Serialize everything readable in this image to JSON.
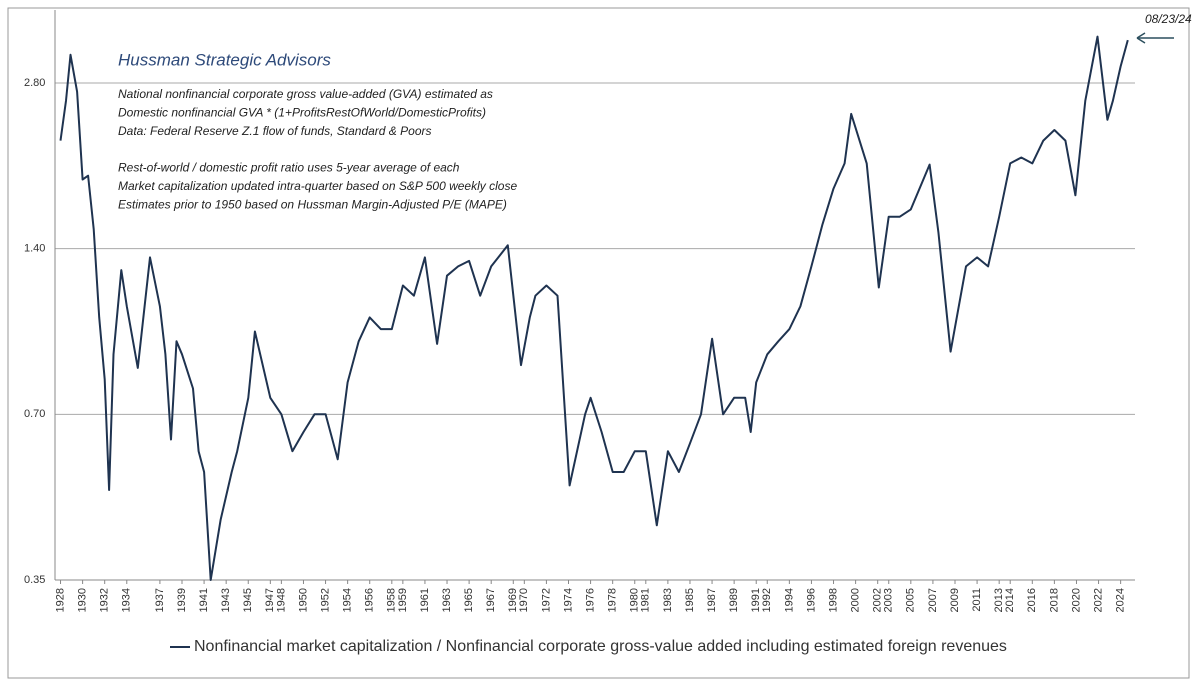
{
  "chart_data": {
    "type": "line",
    "title": "Hussman Strategic Advisors",
    "notes": [
      "National nonfinancial corporate gross value-added (GVA) estimated as",
      "Domestic nonfinancial GVA * (1+ProfitsRestOfWorld/DomesticProfits)",
      "Data: Federal Reserve Z.1 flow of funds, Standard & Poors",
      "Rest-of-world / domestic profit ratio uses 5-year average of each",
      "Market capitalization updated intra-quarter based on S&P 500 weekly close",
      "Estimates prior to 1950 based on Hussman Margin-Adjusted P/E (MAPE)"
    ],
    "annotation": "08/23/24",
    "log_scale": true,
    "grid": true,
    "xlim": [
      1927.5,
      2025.3
    ],
    "ylim": [
      0.35,
      3.8
    ],
    "yticks": [
      0.35,
      {
        "value": 0.7,
        "label": "0.70"
      },
      {
        "value": 1.4,
        "label": "1.40"
      },
      {
        "value": 2.8,
        "label": "2.80"
      }
    ],
    "xticks": [
      1928,
      1930,
      1932,
      1934,
      1937,
      1939,
      1941,
      1943,
      1945,
      1947,
      1948,
      1950,
      1952,
      1954,
      1956,
      1958,
      1959,
      1961,
      1963,
      1965,
      1967,
      1969,
      1970,
      1972,
      1974,
      1976,
      1978,
      1980,
      1981,
      1983,
      1985,
      1987,
      1989,
      1991,
      1992,
      1994,
      1996,
      1998,
      2000,
      2002,
      2003,
      2005,
      2007,
      2009,
      2011,
      2013,
      2014,
      2016,
      2018,
      2020,
      2022,
      2024
    ],
    "x": [
      1928.0,
      1928.5,
      1928.9,
      1929.5,
      1930.0,
      1930.5,
      1931.0,
      1931.5,
      1932.0,
      1932.4,
      1932.8,
      1933.5,
      1934.0,
      1935.0,
      1936.1,
      1937.0,
      1937.5,
      1938.0,
      1938.5,
      1939.0,
      1940.0,
      1940.5,
      1941.0,
      1941.6,
      1942.5,
      1943.5,
      1944.0,
      1945.0,
      1945.6,
      1947.0,
      1948.0,
      1949.0,
      1950.0,
      1951.0,
      1952.0,
      1953.1,
      1954.0,
      1955.0,
      1956.0,
      1957.0,
      1958.0,
      1959.0,
      1960.0,
      1961.0,
      1962.1,
      1963.0,
      1964.0,
      1965.0,
      1966.0,
      1967.0,
      1968.5,
      1969.7,
      1970.5,
      1971.0,
      1972.0,
      1973.0,
      1974.1,
      1975.5,
      1976.0,
      1977.0,
      1978.0,
      1979.0,
      1980.0,
      1981.0,
      1982.0,
      1983.0,
      1984.0,
      1985.0,
      1986.0,
      1987.0,
      1988.0,
      1989.0,
      1990.0,
      1990.5,
      1991.0,
      1992.0,
      1993.0,
      1994.0,
      1995.0,
      1996.0,
      1997.0,
      1998.0,
      1999.0,
      1999.6,
      2001.0,
      2002.1,
      2003.0,
      2004.0,
      2005.0,
      2006.7,
      2007.5,
      2008.6,
      2010.0,
      2011.0,
      2012.0,
      2013.0,
      2014.0,
      2015.0,
      2016.0,
      2017.0,
      2018.0,
      2019.0,
      2019.9,
      2020.8,
      2021.9,
      2022.8,
      2023.3,
      2024.0,
      2024.65
    ],
    "series": [
      {
        "name": "Nonfinancial market capitalization / Nonfinancial corporate gross-value added including estimated foreign revenues",
        "color": "#1f3350",
        "values": [
          2.2,
          2.6,
          3.15,
          2.7,
          1.87,
          1.9,
          1.52,
          1.05,
          0.81,
          0.51,
          0.9,
          1.28,
          1.1,
          0.85,
          1.35,
          1.1,
          0.9,
          0.63,
          0.95,
          0.9,
          0.78,
          0.6,
          0.55,
          0.35,
          0.45,
          0.55,
          0.6,
          0.75,
          0.99,
          0.75,
          0.7,
          0.6,
          0.65,
          0.7,
          0.7,
          0.58,
          0.8,
          0.95,
          1.05,
          1.0,
          1.0,
          1.2,
          1.15,
          1.35,
          0.94,
          1.25,
          1.3,
          1.33,
          1.15,
          1.3,
          1.42,
          0.86,
          1.05,
          1.15,
          1.2,
          1.15,
          0.52,
          0.7,
          0.75,
          0.65,
          0.55,
          0.55,
          0.6,
          0.6,
          0.44,
          0.6,
          0.55,
          0.62,
          0.7,
          0.96,
          0.7,
          0.75,
          0.75,
          0.65,
          0.8,
          0.9,
          0.95,
          1.0,
          1.1,
          1.3,
          1.55,
          1.8,
          2.0,
          2.46,
          2.0,
          1.19,
          1.6,
          1.6,
          1.65,
          1.99,
          1.5,
          0.91,
          1.3,
          1.35,
          1.3,
          1.6,
          2.0,
          2.05,
          2.0,
          2.2,
          2.3,
          2.2,
          1.75,
          2.6,
          3.4,
          2.4,
          2.6,
          3.0,
          3.35
        ]
      }
    ]
  }
}
